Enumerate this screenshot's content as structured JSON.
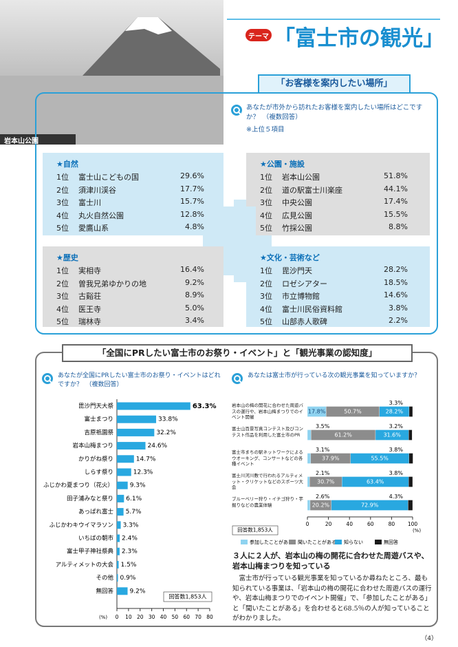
{
  "header": {
    "badge": "テーマ",
    "title": "「富士市の観光」",
    "photo_caption": "岩本山公園"
  },
  "section1": {
    "heading": "「お客様を案内したい場所」",
    "question": "あなたが市外から訪れたお客様を案内したい場所はどこですか？　（複数回答）",
    "note": "※上位５項目",
    "groups": [
      {
        "title": "★自然",
        "items": [
          {
            "rank": "1位",
            "name": "富士山こどもの国",
            "percent": "29.6%"
          },
          {
            "rank": "2位",
            "name": "須津川渓谷",
            "percent": "17.7%"
          },
          {
            "rank": "3位",
            "name": "富士川",
            "percent": "15.7%"
          },
          {
            "rank": "4位",
            "name": "丸火自然公園",
            "percent": "12.8%"
          },
          {
            "rank": "5位",
            "name": "愛鷹山系",
            "percent": "4.8%"
          }
        ]
      },
      {
        "title": "★公園・施設",
        "items": [
          {
            "rank": "1位",
            "name": "岩本山公園",
            "percent": "51.8%"
          },
          {
            "rank": "2位",
            "name": "道の駅富士川楽座",
            "percent": "44.1%"
          },
          {
            "rank": "3位",
            "name": "中央公園",
            "percent": "17.4%"
          },
          {
            "rank": "4位",
            "name": "広見公園",
            "percent": "15.5%"
          },
          {
            "rank": "5位",
            "name": "竹採公園",
            "percent": "8.8%"
          }
        ]
      },
      {
        "title": "★歴史",
        "items": [
          {
            "rank": "1位",
            "name": "実相寺",
            "percent": "16.4%"
          },
          {
            "rank": "2位",
            "name": "曽我兄弟ゆかりの地",
            "percent": "9.2%"
          },
          {
            "rank": "3位",
            "name": "古谿荘",
            "percent": "8.9%"
          },
          {
            "rank": "4位",
            "name": "医王寺",
            "percent": "5.0%"
          },
          {
            "rank": "5位",
            "name": "瑞林寺",
            "percent": "3.4%"
          }
        ]
      },
      {
        "title": "★文化・芸術など",
        "items": [
          {
            "rank": "1位",
            "name": "毘沙門天",
            "percent": "28.2%"
          },
          {
            "rank": "2位",
            "name": "ロゼシアター",
            "percent": "18.5%"
          },
          {
            "rank": "3位",
            "name": "市立博物館",
            "percent": "14.6%"
          },
          {
            "rank": "4位",
            "name": "富士川民俗資料館",
            "percent": "3.8%"
          },
          {
            "rank": "5位",
            "name": "山部赤人歌碑",
            "percent": "2.2%"
          }
        ]
      }
    ]
  },
  "section2": {
    "heading": "「全国にPRしたい富士市のお祭り・イベント」と「観光事業の認知度」",
    "headline": "３人に２人が、岩本山の梅の開花に合わせた周遊バスや、岩本山梅まつりを知っている",
    "body": "富士市が行っている観光事業を知っているか尋ねたところ、最も知られている事業は、「岩本山の梅の開花に合わせた周遊バスの運行や、岩本山梅まつりでのイベント開催」で、「参加したことがある」と「聞いたことがある」を合わせると68.5％の人が知っていることがわかりました。"
  },
  "chart_data": [
    {
      "type": "bar",
      "question": "あなたが全国にPRしたい富士市のお祭り・イベントはどれですか？　（複数回答）",
      "categories": [
        "毘沙門天大祭",
        "富士まつり",
        "吉原祇園祭",
        "岩本山梅まつり",
        "かりがね祭り",
        "しらす祭り",
        "ふじかわ夏まつり（花火）",
        "田子浦みなと祭り",
        "あっぱれ富士",
        "ふじかわキウイマラソン",
        "いちばの朝市",
        "富士甲子神社祭典",
        "アルティメットの大会",
        "その他",
        "無回答"
      ],
      "values": [
        63.3,
        33.8,
        32.2,
        24.6,
        14.7,
        12.3,
        9.3,
        6.1,
        5.7,
        3.3,
        2.4,
        2.3,
        1.5,
        0.9,
        9.2
      ],
      "value_labels": [
        "63.3%",
        "33.8%",
        "32.2%",
        "24.6%",
        "14.7%",
        "12.3%",
        "9.3%",
        "6.1%",
        "5.7%",
        "3.3%",
        "2.4%",
        "2.3%",
        "1.5%",
        "0.9%",
        "9.2%"
      ],
      "color": "#29a8e0",
      "xlim": [
        0,
        80
      ],
      "xticks": [
        0,
        10,
        20,
        30,
        40,
        50,
        60,
        70,
        80
      ],
      "x_label": "(%)",
      "note": "回答数1,853人"
    },
    {
      "type": "stacked_bar",
      "question": "あなたは富士市が行っている次の観光事業を知っていますか？",
      "categories": [
        "岩本山の梅の開花に合わせた周遊バスの運行や、岩本山梅まつりでのイベント開催",
        "富士山百景写真コンテスト及びコンテスト作品を利用した富士市のPR",
        "富士市まちの駅ネットワークによるウオーキング、コンサートなどの各種イベント",
        "富士川河川敷で行われるアルティメット・クリケットなどのスポーツ大会",
        "ブルーベリー狩り・イチゴ狩り・芋掘りなどの農業体験"
      ],
      "series": [
        {
          "name": "参加したことがある",
          "color": "#8fd3f0",
          "values": [
            17.8,
            3.5,
            3.1,
            2.1,
            2.6
          ],
          "value_labels": [
            "17.8%",
            "3.5%",
            "3.1%",
            "2.1%",
            "2.6%"
          ]
        },
        {
          "name": "聞いたことがある",
          "color": "#8c8c8c",
          "values": [
            50.7,
            61.2,
            37.9,
            30.7,
            20.2
          ],
          "value_labels": [
            "50.7%",
            "61.2%",
            "37.9%",
            "30.7%",
            "20.2%"
          ]
        },
        {
          "name": "知らない",
          "color": "#29a8e0",
          "values": [
            28.2,
            31.6,
            55.5,
            63.4,
            72.9
          ],
          "value_labels": [
            "28.2%",
            "31.6%",
            "55.5%",
            "63.4%",
            "72.9%"
          ]
        },
        {
          "name": "無回答",
          "color": "#1a1a1a",
          "values": [
            3.3,
            3.2,
            3.8,
            3.8,
            4.3
          ],
          "value_labels": [
            "3.3%",
            "3.2%",
            "3.8%",
            "3.8%",
            "4.3%"
          ]
        }
      ],
      "xlim": [
        0,
        100
      ],
      "xticks": [
        0,
        20,
        40,
        60,
        80,
        100
      ],
      "x_label": "(%)",
      "note": "回答数1,853人"
    }
  ],
  "page_number": "（4）"
}
